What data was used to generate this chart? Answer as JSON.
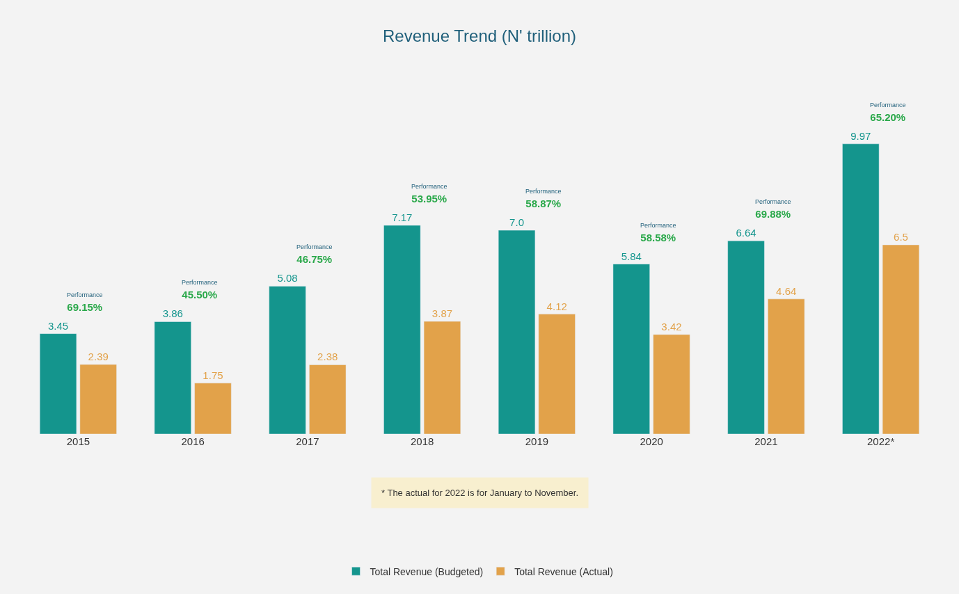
{
  "chart_data": {
    "type": "bar",
    "title": "Revenue Trend (N' trillion)",
    "categories": [
      "2015",
      "2016",
      "2017",
      "2018",
      "2019",
      "2020",
      "2021",
      "2022*"
    ],
    "series": [
      {
        "name": "Total Revenue (Budgeted)",
        "color": "#14958d",
        "values": [
          3.45,
          3.86,
          5.08,
          7.17,
          7.0,
          5.84,
          6.64,
          9.97
        ],
        "value_labels": [
          "3.45",
          "3.86",
          "5.08",
          "7.17",
          "7.0",
          "5.84",
          "6.64",
          "9.97"
        ]
      },
      {
        "name": "Total Revenue (Actual)",
        "color": "#e2a24a",
        "values": [
          2.39,
          1.75,
          2.38,
          3.87,
          4.12,
          3.42,
          4.64,
          6.5
        ],
        "value_labels": [
          "2.39",
          "1.75",
          "2.38",
          "3.87",
          "4.12",
          "3.42",
          "4.64",
          "6.5"
        ]
      }
    ],
    "annotations": [
      {
        "text": "Performance\n69.15%",
        "x": "2015",
        "y": 3.45
      },
      {
        "text": "Performance\n45.50%",
        "x": "2016",
        "y": 3.86
      },
      {
        "text": "Performance\n46.75%",
        "x": "2017",
        "y": 5.08
      },
      {
        "text": "Performance\n53.95%",
        "x": "2018",
        "y": 7.17
      },
      {
        "text": "Performance\n58.87%",
        "x": "2019",
        "y": 7.0
      },
      {
        "text": "Performance\n58.58%",
        "x": "2020",
        "y": 5.84
      },
      {
        "text": "Performance\n69.88%",
        "x": "2021",
        "y": 6.64
      },
      {
        "text": "Performance\n65.20%",
        "x": "2022*",
        "y": 9.97
      },
      "* The actual for 2022 is for January to November."
    ],
    "legend": "bottom",
    "grid": false,
    "tick_labels": "x"
  }
}
